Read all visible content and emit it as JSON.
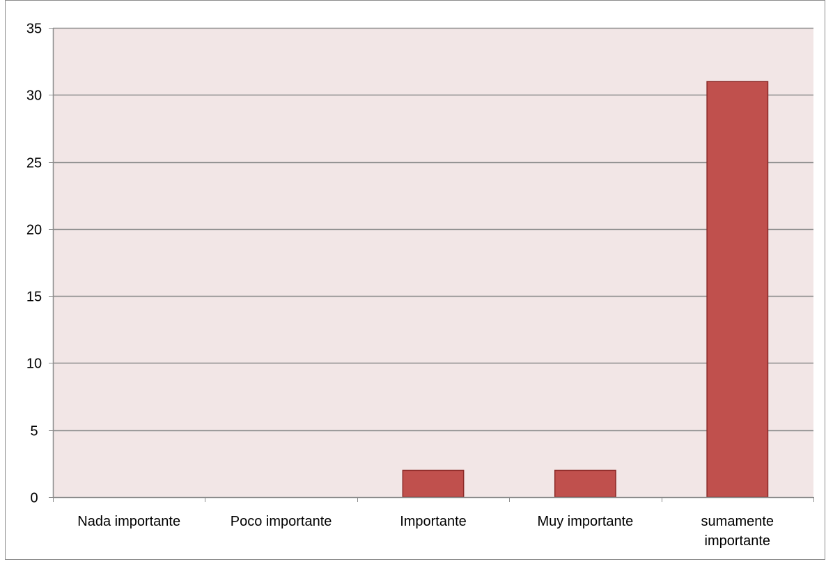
{
  "chart_data": {
    "type": "bar",
    "title": "",
    "xlabel": "",
    "ylabel": "",
    "categories": [
      [
        "Nada importante"
      ],
      [
        "Poco importante"
      ],
      [
        "Importante"
      ],
      [
        "Muy importante"
      ],
      [
        "sumamente",
        "importante"
      ]
    ],
    "series": [
      {
        "values": [
          0,
          0,
          2,
          2,
          31
        ]
      }
    ],
    "ylim": [
      0,
      35
    ],
    "yticks": [
      0,
      5,
      10,
      15,
      20,
      25,
      30,
      35
    ],
    "grid": true,
    "legend": "none",
    "colors": {
      "plot_background": "#f2e6e6",
      "bar_fill": "#c0504d",
      "bar_stroke": "#8b2a28",
      "gridline": "#8c8c8c",
      "axis": "#8c8c8c",
      "frame_border": "#8c8c8c"
    }
  }
}
